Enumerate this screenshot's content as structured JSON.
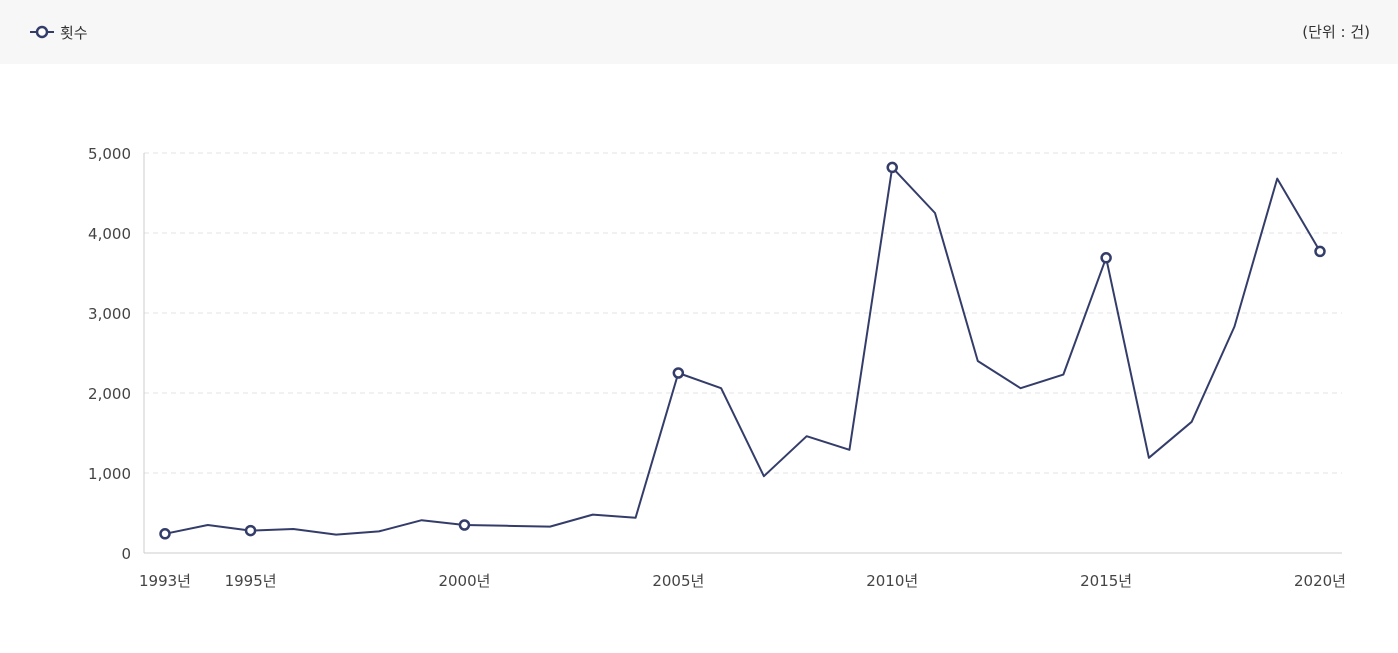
{
  "legend": {
    "series_label": "횟수",
    "unit_label": "(단위 : 건)"
  },
  "chart_data": {
    "type": "line",
    "title": "",
    "xlabel": "",
    "ylabel": "",
    "x": [
      1993,
      1994,
      1995,
      1996,
      1997,
      1998,
      1999,
      2000,
      2001,
      2002,
      2003,
      2004,
      2005,
      2006,
      2007,
      2008,
      2009,
      2010,
      2011,
      2012,
      2013,
      2014,
      2015,
      2016,
      2017,
      2018,
      2019,
      2020
    ],
    "x_tick_labels": [
      {
        "x": 1993,
        "label": "1993년"
      },
      {
        "x": 1995,
        "label": "1995년"
      },
      {
        "x": 2000,
        "label": "2000년"
      },
      {
        "x": 2005,
        "label": "2005년"
      },
      {
        "x": 2010,
        "label": "2010년"
      },
      {
        "x": 2015,
        "label": "2015년"
      },
      {
        "x": 2020,
        "label": "2020년"
      }
    ],
    "y_tick_labels": [
      "0",
      "1,000",
      "2,000",
      "3,000",
      "4,000",
      "5,000"
    ],
    "y_ticks": [
      0,
      1000,
      2000,
      3000,
      4000,
      5000
    ],
    "ylim": [
      0,
      5000
    ],
    "grid": true,
    "series": [
      {
        "name": "횟수",
        "color": "#343d6a",
        "values": [
          240,
          350,
          280,
          300,
          230,
          270,
          410,
          350,
          340,
          330,
          480,
          440,
          2250,
          2060,
          960,
          1460,
          1290,
          4820,
          4250,
          2400,
          2060,
          2230,
          3690,
          1190,
          1640,
          2830,
          4680,
          3770
        ],
        "marker_x": [
          1993,
          1995,
          2000,
          2005,
          2010,
          2015,
          2020
        ]
      }
    ]
  }
}
